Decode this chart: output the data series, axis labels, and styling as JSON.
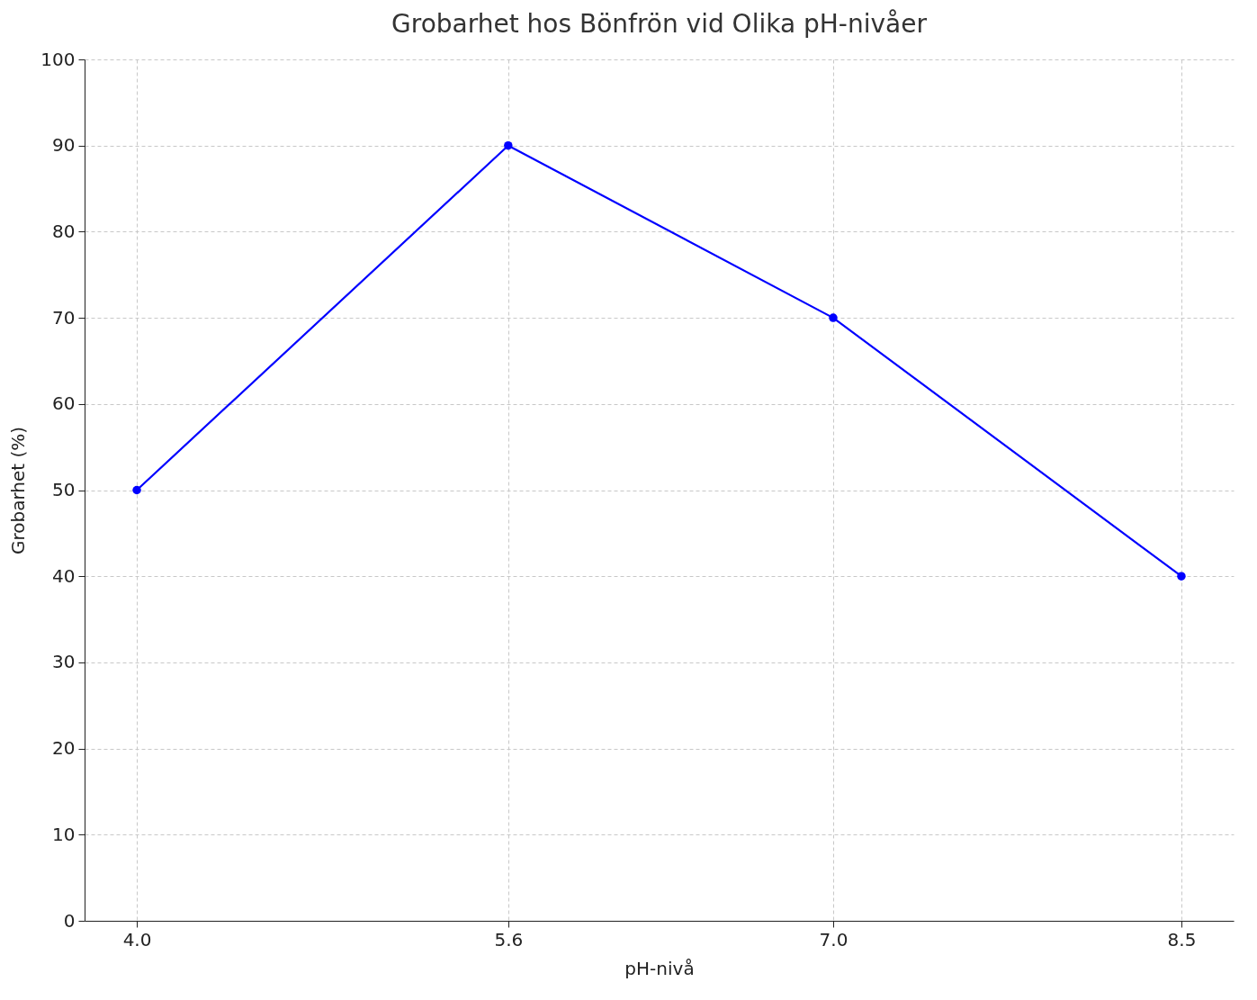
{
  "chart_data": {
    "type": "line",
    "title": "Grobarhet hos Bönfrön vid Olika pH-nivåer",
    "xlabel": "pH-nivå",
    "ylabel": "Grobarhet (%)",
    "x": [
      4.0,
      5.6,
      7.0,
      8.5
    ],
    "series": [
      {
        "color": "#0000ff",
        "values": [
          50,
          90,
          70,
          40
        ]
      }
    ],
    "xlim": [
      3.775,
      8.725
    ],
    "xticks": [
      {
        "value": 4.0,
        "label": "4.0"
      },
      {
        "value": 5.6,
        "label": "5.6"
      },
      {
        "value": 7.0,
        "label": "7.0"
      },
      {
        "value": 8.5,
        "label": "8.5"
      }
    ],
    "ylim": [
      0,
      100
    ],
    "yticks": [
      0,
      10,
      20,
      30,
      40,
      50,
      60,
      70,
      80,
      90,
      100
    ],
    "grid": true,
    "marker": "circle",
    "line_style": "solid"
  }
}
